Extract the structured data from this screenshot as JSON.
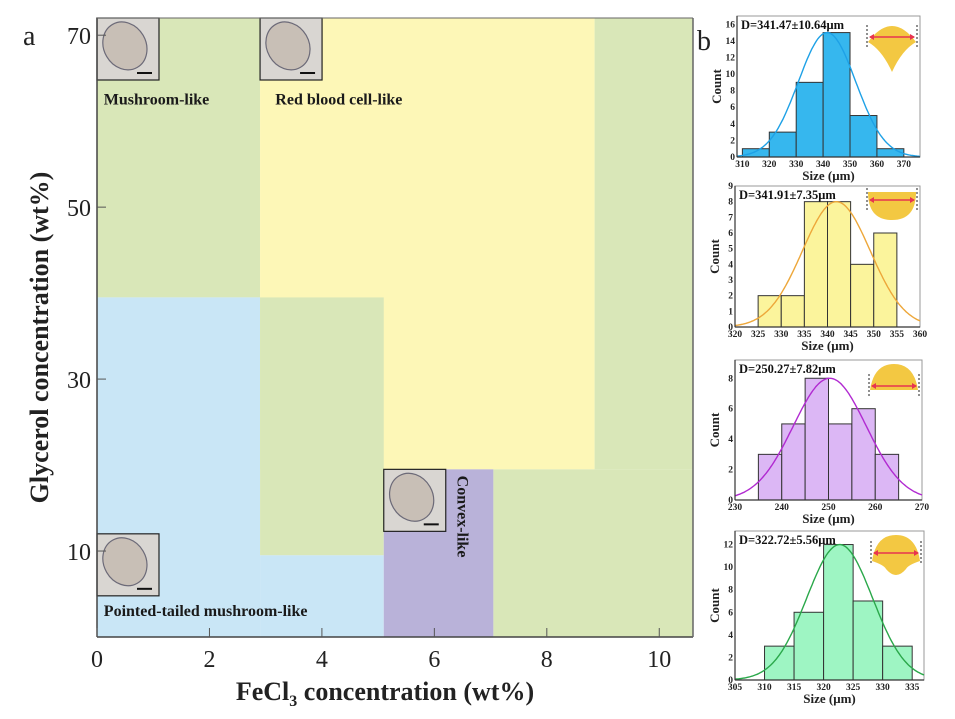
{
  "chart_data": [
    {
      "panel_label": "a",
      "type": "heatmap",
      "title": "",
      "xlabel_prefix": "FeCl",
      "xlabel_sub": "3",
      "xlabel_suffix": " concentration (wt%)",
      "ylabel": "Glycerol concentration (wt%)",
      "xlim": [
        0,
        10.6
      ],
      "ylim": [
        0,
        72
      ],
      "xticks": [
        0,
        2,
        4,
        6,
        8,
        10
      ],
      "xtick_labels": [
        "0",
        "2",
        "4",
        "6",
        "8",
        "10"
      ],
      "yticks": [
        10,
        30,
        50,
        70
      ],
      "ytick_labels": [
        "10",
        "30",
        "50",
        "70"
      ],
      "regions": [
        {
          "name": "mushroom-top-left",
          "phase": "Mushroom-like",
          "x": [
            0,
            2.9
          ],
          "y": [
            39.5,
            72
          ],
          "color": "#d9e7b8"
        },
        {
          "name": "red-blood-cell",
          "phase": "Red blood cell-like",
          "x": [
            2.9,
            8.85
          ],
          "y": [
            19.5,
            72
          ],
          "color": "#fdf7b7"
        },
        {
          "name": "mushroom-top-right",
          "phase": "Mushroom-like",
          "x": [
            8.85,
            10.6
          ],
          "y": [
            19.5,
            72
          ],
          "color": "#d9e7b8"
        },
        {
          "name": "pointed-tailed",
          "phase": "Pointed-tailed mushroom-like",
          "x": [
            0,
            2.9
          ],
          "y": [
            0,
            39.5
          ],
          "color": "#c9e6f6"
        },
        {
          "name": "mushroom-middle",
          "phase": "Mushroom-like",
          "x": [
            2.9,
            5.1
          ],
          "y": [
            9.5,
            39.5
          ],
          "color": "#d9e7b8"
        },
        {
          "name": "pointed-tailed-bottom",
          "phase": "Pointed-tailed mushroom-like",
          "x": [
            2.9,
            5.1
          ],
          "y": [
            0,
            9.5
          ],
          "color": "#c9e6f6"
        },
        {
          "name": "convex",
          "phase": "Convex-like",
          "x": [
            5.1,
            7.05
          ],
          "y": [
            0,
            19.5
          ],
          "color": "#b9b2d9"
        },
        {
          "name": "mushroom-bottom-right",
          "phase": "Mushroom-like",
          "x": [
            7.05,
            10.6
          ],
          "y": [
            0,
            19.5
          ],
          "color": "#d9e7b8"
        }
      ],
      "annotations": [
        {
          "text": "Mushroom-like",
          "x": 0.05,
          "y": 62.5,
          "rotate": false
        },
        {
          "text": "Red blood cell-like",
          "x": 3.1,
          "y": 62.5,
          "rotate": false
        },
        {
          "text": "Convex-like",
          "x": 6.5,
          "y": 19,
          "rotate": true
        },
        {
          "text": "Pointed-tailed mushroom-like",
          "x": 0.05,
          "y": 3,
          "rotate": false
        }
      ],
      "insets": [
        {
          "name": "mushroom-micrograph",
          "x": 0,
          "y": 72
        },
        {
          "name": "red-blood-cell-micrograph",
          "x": 2.9,
          "y": 72
        },
        {
          "name": "convex-micrograph",
          "x": 5.1,
          "y": 19.5
        },
        {
          "name": "pointed-tailed-micrograph",
          "x": 0,
          "y": 12
        }
      ]
    },
    {
      "panel_label": "b",
      "type": "bar",
      "title": "D=341.47±10.64μm",
      "xlabel": "Size (μm)",
      "ylabel": "Count",
      "xlim": [
        308,
        376
      ],
      "ylim": [
        0,
        17
      ],
      "xticks": [
        310,
        320,
        330,
        340,
        350,
        360,
        370
      ],
      "yticks": [
        0,
        2,
        4,
        6,
        8,
        10,
        12,
        14,
        16
      ],
      "bins": [
        [
          310,
          320
        ],
        [
          320,
          330
        ],
        [
          330,
          340
        ],
        [
          340,
          350
        ],
        [
          350,
          360
        ],
        [
          360,
          370
        ]
      ],
      "values": [
        1,
        3,
        9,
        15,
        5,
        1
      ],
      "fit": {
        "mean": 341.47,
        "sd": 10.64,
        "peak": 15
      },
      "color": "#36b7ee",
      "line_color": "#1ea1e6",
      "shape": "pointed-mushroom"
    },
    {
      "panel_label": "",
      "type": "bar",
      "title": "D=341.91±7.35μm",
      "xlabel": "Size (μm)",
      "ylabel": "Count",
      "xlim": [
        320,
        360
      ],
      "ylim": [
        0,
        9
      ],
      "xticks": [
        320,
        325,
        330,
        335,
        340,
        345,
        350,
        355,
        360
      ],
      "yticks": [
        0,
        1,
        2,
        3,
        4,
        5,
        6,
        7,
        8,
        9
      ],
      "bins": [
        [
          325,
          330
        ],
        [
          330,
          335
        ],
        [
          335,
          340
        ],
        [
          340,
          345
        ],
        [
          345,
          350
        ],
        [
          350,
          355
        ]
      ],
      "values": [
        2,
        2,
        8,
        8,
        4,
        6
      ],
      "fit": {
        "mean": 341.91,
        "sd": 7.35,
        "peak": 8
      },
      "color": "#fbf49c",
      "line_color": "#eda73a",
      "shape": "red-blood-cell"
    },
    {
      "panel_label": "",
      "type": "bar",
      "title": "D=250.27±7.82μm",
      "xlabel": "Size (μm)",
      "ylabel": "Count",
      "xlim": [
        230,
        270
      ],
      "ylim": [
        0,
        9.2
      ],
      "xticks": [
        230,
        240,
        250,
        260,
        270
      ],
      "yticks": [
        0,
        2,
        4,
        6,
        8
      ],
      "bins": [
        [
          235,
          240
        ],
        [
          240,
          245
        ],
        [
          245,
          250
        ],
        [
          250,
          255
        ],
        [
          255,
          260
        ],
        [
          260,
          265
        ]
      ],
      "values": [
        3,
        5,
        8,
        5,
        6,
        3
      ],
      "fit": {
        "mean": 250.27,
        "sd": 7.82,
        "peak": 8
      },
      "color": "#dcb7f5",
      "line_color": "#b12ad1",
      "shape": "convex"
    },
    {
      "panel_label": "",
      "type": "bar",
      "title": "D=322.72±5.56μm",
      "xlabel": "Size (μm)",
      "ylabel": "Count",
      "xlim": [
        305,
        337
      ],
      "ylim": [
        0,
        13.2
      ],
      "xticks": [
        305,
        310,
        315,
        320,
        325,
        330,
        335
      ],
      "yticks": [
        0,
        2,
        4,
        6,
        8,
        10,
        12
      ],
      "bins": [
        [
          310,
          315
        ],
        [
          315,
          320
        ],
        [
          320,
          325
        ],
        [
          325,
          330
        ],
        [
          330,
          335
        ]
      ],
      "values": [
        3,
        6,
        12,
        7,
        3
      ],
      "fit": {
        "mean": 322.72,
        "sd": 5.56,
        "peak": 12
      },
      "color": "#9ef5c3",
      "line_color": "#2aa84a",
      "shape": "mushroom"
    }
  ]
}
